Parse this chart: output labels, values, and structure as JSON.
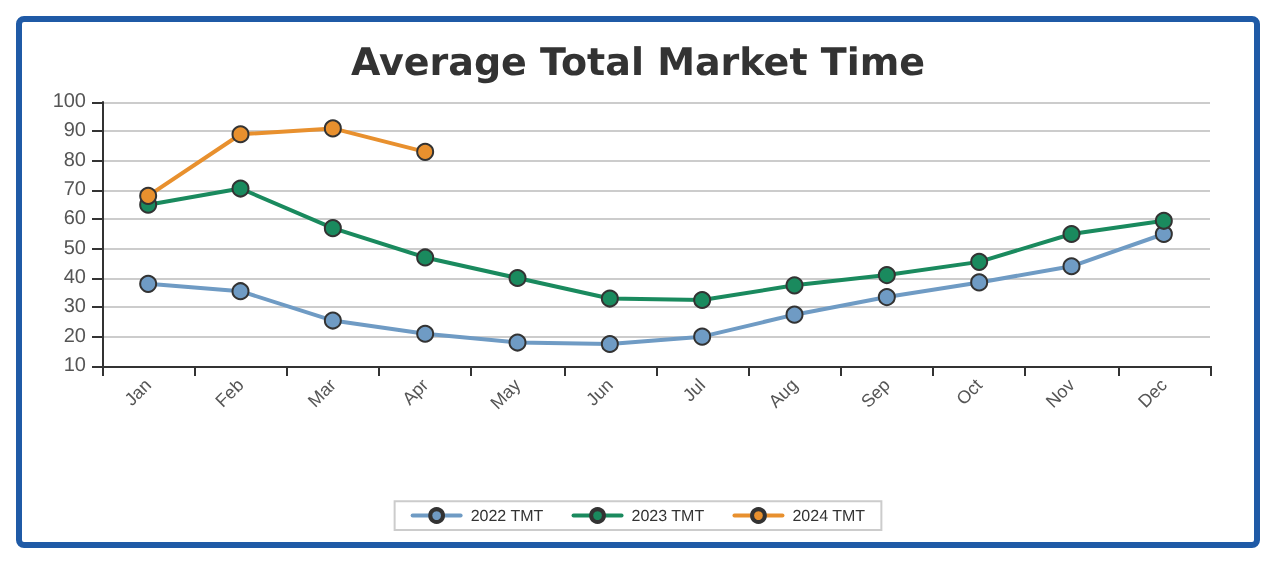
{
  "chart_data": {
    "type": "line",
    "title": "Average Total Market Time",
    "categories": [
      "Jan",
      "Feb",
      "Mar",
      "Apr",
      "May",
      "Jun",
      "Jul",
      "Aug",
      "Sep",
      "Oct",
      "Nov",
      "Dec"
    ],
    "series": [
      {
        "name": "2022 TMT",
        "color": "#6f9bc4",
        "values": [
          38,
          35.5,
          25.5,
          21,
          18,
          17.5,
          20,
          27.5,
          33.5,
          38.5,
          44,
          55
        ]
      },
      {
        "name": "2023 TMT",
        "color": "#1a8a5e",
        "values": [
          65,
          70.5,
          57,
          47,
          40,
          33,
          32.5,
          37.5,
          41,
          45.5,
          55,
          59.5
        ]
      },
      {
        "name": "2024 TMT",
        "color": "#e8902e",
        "values": [
          68,
          89,
          91,
          83,
          null,
          null,
          null,
          null,
          null,
          null,
          null,
          null
        ]
      }
    ],
    "ylim": [
      10,
      100
    ],
    "yticks": [
      10,
      20,
      30,
      40,
      50,
      60,
      70,
      80,
      90,
      100
    ],
    "grid": "y",
    "legend": "bottom",
    "marker": "circle",
    "line_style": "solid"
  }
}
